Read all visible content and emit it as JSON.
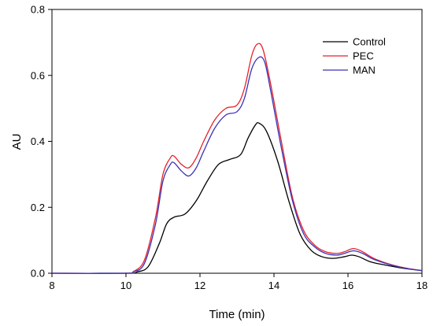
{
  "chart_data": {
    "type": "line",
    "title": "",
    "xlabel": "Time (min)",
    "ylabel": "AU",
    "xlim": [
      8,
      18
    ],
    "ylim": [
      0.0,
      0.8
    ],
    "x_ticks": [
      8,
      10,
      12,
      14,
      16,
      18
    ],
    "x_tick_labels": [
      "8",
      "10",
      "12",
      "14",
      "16",
      "18"
    ],
    "y_ticks": [
      0.0,
      0.2,
      0.4,
      0.6,
      0.8
    ],
    "y_tick_labels": [
      "0.0",
      "0.2",
      "0.4",
      "0.6",
      "0.8"
    ],
    "grid": false,
    "legend_position": "top-right",
    "series": [
      {
        "name": "Control",
        "color": "#000000",
        "x": [
          8.0,
          10.0,
          10.3,
          10.6,
          10.9,
          11.1,
          11.3,
          11.6,
          11.9,
          12.2,
          12.5,
          12.8,
          13.1,
          13.3,
          13.5,
          13.6,
          13.8,
          14.1,
          14.4,
          14.7,
          15.0,
          15.3,
          15.6,
          15.9,
          16.1,
          16.3,
          16.6,
          17.0,
          17.5,
          18.0
        ],
        "values": [
          0.0,
          0.0,
          0.004,
          0.02,
          0.09,
          0.15,
          0.17,
          0.18,
          0.22,
          0.28,
          0.33,
          0.345,
          0.36,
          0.41,
          0.45,
          0.455,
          0.43,
          0.34,
          0.22,
          0.12,
          0.07,
          0.05,
          0.045,
          0.05,
          0.055,
          0.05,
          0.035,
          0.025,
          0.015,
          0.008
        ]
      },
      {
        "name": "PEC",
        "color": "#e8202a",
        "x": [
          8.0,
          10.0,
          10.2,
          10.5,
          10.8,
          11.0,
          11.2,
          11.3,
          11.5,
          11.7,
          11.9,
          12.1,
          12.4,
          12.7,
          13.0,
          13.2,
          13.4,
          13.55,
          13.7,
          13.9,
          14.2,
          14.5,
          14.8,
          15.1,
          15.4,
          15.7,
          15.9,
          16.15,
          16.4,
          16.7,
          17.2,
          17.6,
          18.0
        ],
        "values": [
          0.0,
          0.0,
          0.005,
          0.04,
          0.17,
          0.3,
          0.35,
          0.355,
          0.33,
          0.32,
          0.35,
          0.4,
          0.465,
          0.5,
          0.51,
          0.56,
          0.66,
          0.695,
          0.68,
          0.58,
          0.4,
          0.23,
          0.13,
          0.085,
          0.065,
          0.06,
          0.065,
          0.075,
          0.065,
          0.045,
          0.025,
          0.015,
          0.008
        ]
      },
      {
        "name": "MAN",
        "color": "#3a33b8",
        "x": [
          8.0,
          10.0,
          10.2,
          10.5,
          10.8,
          11.0,
          11.2,
          11.3,
          11.5,
          11.7,
          11.9,
          12.1,
          12.4,
          12.7,
          13.0,
          13.2,
          13.4,
          13.6,
          13.75,
          13.9,
          14.2,
          14.5,
          14.8,
          15.1,
          15.4,
          15.7,
          15.9,
          16.15,
          16.4,
          16.7,
          17.2,
          17.6,
          18.0
        ],
        "values": [
          0.0,
          0.0,
          0.004,
          0.03,
          0.15,
          0.28,
          0.33,
          0.335,
          0.31,
          0.295,
          0.32,
          0.37,
          0.44,
          0.48,
          0.49,
          0.53,
          0.62,
          0.655,
          0.64,
          0.56,
          0.38,
          0.22,
          0.12,
          0.08,
          0.06,
          0.055,
          0.06,
          0.068,
          0.06,
          0.042,
          0.024,
          0.014,
          0.008
        ]
      }
    ]
  }
}
